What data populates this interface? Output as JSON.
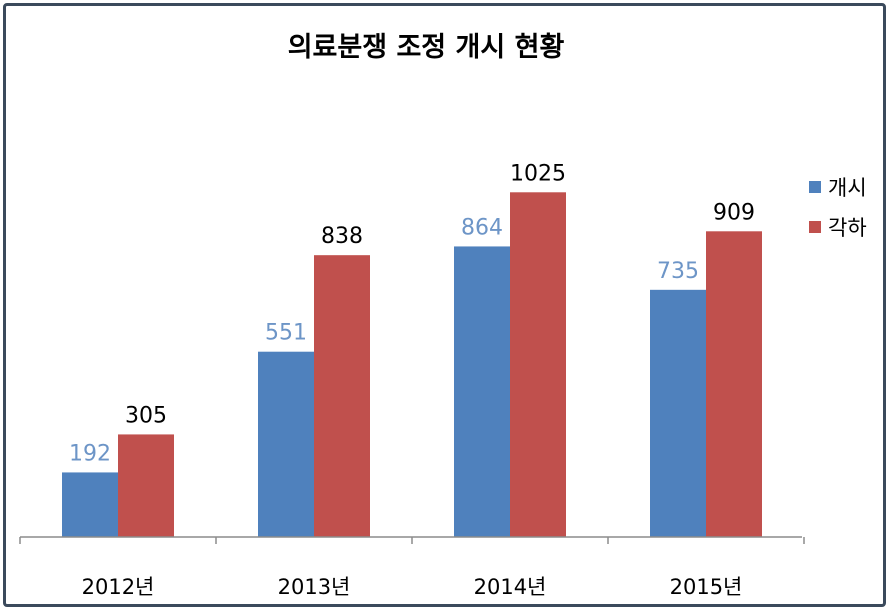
{
  "chart_data": {
    "type": "bar",
    "title": "의료분쟁 조정 개시 현황",
    "categories": [
      "2012년",
      "2013년",
      "2014년",
      "2015년"
    ],
    "series": [
      {
        "name": "개시",
        "values": [
          192,
          551,
          864,
          735
        ],
        "color": "#4f81bd",
        "label_color": "#6d95c7"
      },
      {
        "name": "각하",
        "values": [
          305,
          838,
          1025,
          909
        ],
        "color": "#c0504d",
        "label_color": "#000000"
      }
    ],
    "ylim": [
      0,
      1200
    ],
    "grid": false,
    "legend": "right",
    "axis_color": "#8c8c8c"
  }
}
